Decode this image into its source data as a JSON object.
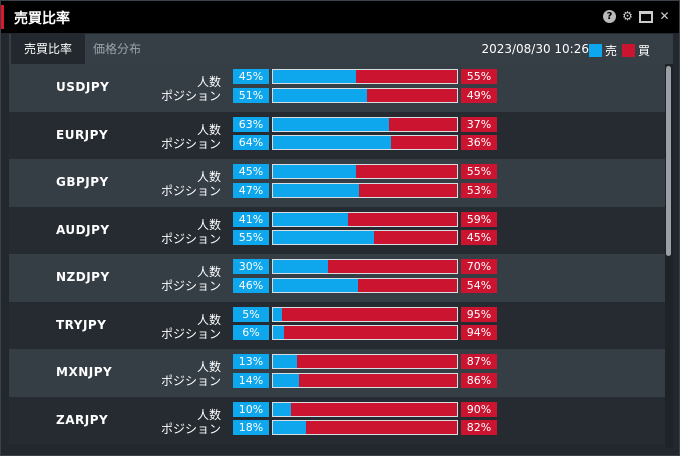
{
  "window": {
    "title": "売買比率"
  },
  "tabs": [
    {
      "label": "売買比率",
      "active": true
    },
    {
      "label": "価格分布",
      "active": false
    }
  ],
  "datetime": "2023/08/30 10:26",
  "legend": {
    "sell_label": "売",
    "buy_label": "買",
    "sell_color": "#0ea6ec",
    "buy_color": "#cb1430"
  },
  "labels": {
    "people": "人数",
    "position": "ポジション"
  },
  "rows": [
    {
      "pair": "USDJPY",
      "people_sell": "45%",
      "people_buy": "55%",
      "pos_sell": "51%",
      "pos_buy": "49%"
    },
    {
      "pair": "EURJPY",
      "people_sell": "63%",
      "people_buy": "37%",
      "pos_sell": "64%",
      "pos_buy": "36%"
    },
    {
      "pair": "GBPJPY",
      "people_sell": "45%",
      "people_buy": "55%",
      "pos_sell": "47%",
      "pos_buy": "53%"
    },
    {
      "pair": "AUDJPY",
      "people_sell": "41%",
      "people_buy": "59%",
      "pos_sell": "55%",
      "pos_buy": "45%"
    },
    {
      "pair": "NZDJPY",
      "people_sell": "30%",
      "people_buy": "70%",
      "pos_sell": "46%",
      "pos_buy": "54%"
    },
    {
      "pair": "TRYJPY",
      "people_sell": "5%",
      "people_buy": "95%",
      "pos_sell": "6%",
      "pos_buy": "94%"
    },
    {
      "pair": "MXNJPY",
      "people_sell": "13%",
      "people_buy": "87%",
      "pos_sell": "14%",
      "pos_buy": "86%"
    },
    {
      "pair": "ZARJPY",
      "people_sell": "10%",
      "people_buy": "90%",
      "pos_sell": "18%",
      "pos_buy": "82%"
    }
  ]
}
